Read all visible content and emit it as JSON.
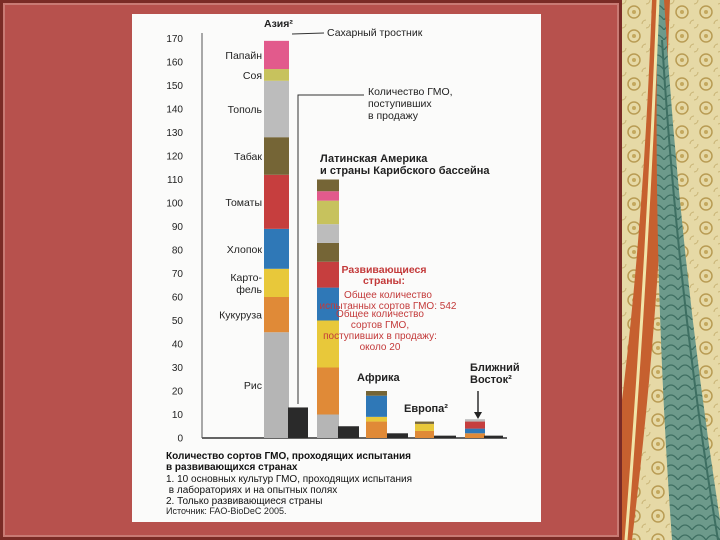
{
  "chart_data": {
    "type": "bar",
    "ylim": [
      0,
      170
    ],
    "yticks": [
      0,
      10,
      20,
      30,
      40,
      50,
      60,
      70,
      80,
      90,
      100,
      110,
      120,
      130,
      140,
      150,
      160,
      170
    ],
    "crops": [
      {
        "name": "Папайн",
        "color": "#e25a8c"
      },
      {
        "name": "Соя",
        "color": "#c7c25d"
      },
      {
        "name": "Тополь",
        "color": "#bcbcbc"
      },
      {
        "name": "Табак",
        "color": "#756536"
      },
      {
        "name": "Томаты",
        "color": "#c63e3e"
      },
      {
        "name": "Хлопок",
        "color": "#2f78b7"
      },
      {
        "name": "Карто-\nфель",
        "color": "#e8c83a"
      },
      {
        "name": "Кукуруза",
        "color": "#e08a37"
      },
      {
        "name": "Рис",
        "color": "#b5b5b5"
      }
    ],
    "groups": [
      {
        "name": "Азия²",
        "tested": {
          "segments": [
            {
              "crop": "Рис",
              "value": 45
            },
            {
              "crop": "Кукуруза",
              "value": 15
            },
            {
              "crop": "Карто-\nфель",
              "value": 12
            },
            {
              "crop": "Хлопок",
              "value": 17
            },
            {
              "crop": "Томаты",
              "value": 23
            },
            {
              "crop": "Табак",
              "value": 16
            },
            {
              "crop": "Тополь",
              "value": 24
            },
            {
              "crop": "Соя",
              "value": 5
            },
            {
              "crop": "Папайн",
              "value": 12
            }
          ]
        },
        "marketed": 13
      },
      {
        "name": "Латинская Америка\nи страны Карибского бассейна",
        "tested": {
          "segments": [
            {
              "crop": "Рис",
              "value": 10
            },
            {
              "crop": "Кукуруза",
              "value": 20
            },
            {
              "crop": "Карто-\nфель",
              "value": 20
            },
            {
              "crop": "Хлопок",
              "value": 14
            },
            {
              "crop": "Томаты",
              "value": 11
            },
            {
              "crop": "Табак",
              "value": 8
            },
            {
              "crop": "Тополь",
              "value": 8
            },
            {
              "crop": "Соя",
              "value": 10
            },
            {
              "crop": "Папайн",
              "value": 4
            },
            {
              "crop": "Табак",
              "value": 5
            }
          ]
        },
        "marketed": 5
      },
      {
        "name": "Африка",
        "tested": {
          "segments": [
            {
              "crop": "Кукуруза",
              "value": 7
            },
            {
              "crop": "Карто-\nфель",
              "value": 2
            },
            {
              "crop": "Хлопок",
              "value": 9
            },
            {
              "crop": "Табак",
              "value": 2
            }
          ]
        },
        "marketed": 2
      },
      {
        "name": "Европа²",
        "tested": {
          "segments": [
            {
              "crop": "Кукуруза",
              "value": 3
            },
            {
              "crop": "Карто-\nфель",
              "value": 3
            },
            {
              "crop": "Табак",
              "value": 1
            }
          ]
        },
        "marketed": 1
      },
      {
        "name": "Ближний\nВосток²",
        "tested": {
          "segments": [
            {
              "crop": "Кукуруза",
              "value": 2
            },
            {
              "crop": "Хлопок",
              "value": 2
            },
            {
              "crop": "Томаты",
              "value": 3
            },
            {
              "crop": "Тополь",
              "value": 1
            }
          ]
        },
        "marketed": 1
      }
    ],
    "annotations": {
      "sugarcane": "Сахарный тростник",
      "marketed_label": "Количество ГМО,\nпоступивших\nв продажу",
      "developing_title": "Развивающиеся\nстраны:",
      "developing_tested": "Общее количество\nиспытанных сортов ГМО: 542",
      "developing_marketed": "Общее количество\nсортов ГМО,\nпоступивших в продажу:\nоколо 20"
    },
    "caption": {
      "title": "Количество сортов ГМО, проходящих испытания\nв развивающихся странах",
      "note1": "1. 10 основных культур ГМО, проходящих испытания\n    в лабораториях и на опытных полях",
      "note2": "2. Только развивающиеся страны",
      "source": "Источник: FAO-BioDeC 2005."
    }
  }
}
